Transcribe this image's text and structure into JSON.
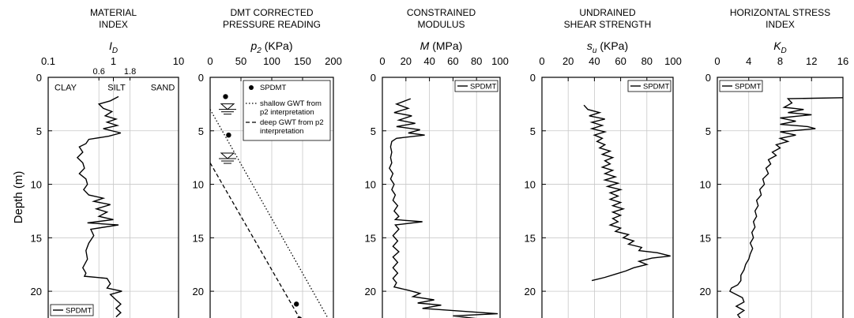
{
  "colors": {
    "line": "#000000",
    "grid": "#c8c8c8",
    "frame": "#000000"
  },
  "ylabel": "Depth (m)",
  "chart_data": [
    {
      "type": "line",
      "title": [
        "MATERIAL",
        "INDEX"
      ],
      "symbol": "I",
      "symbol_sub": "D",
      "unit": "",
      "xscale": "log",
      "xlim": [
        0.1,
        10
      ],
      "ylim": [
        0,
        22.5
      ],
      "xticks": [
        0.1,
        1,
        10
      ],
      "xtick_labels": [
        "0.1",
        "1",
        "10"
      ],
      "xticks_minor": [
        0.6,
        1.8
      ],
      "xticks_minor_labels": [
        "0.6",
        "1.8"
      ],
      "yticks": [
        0,
        5,
        10,
        15,
        20
      ],
      "grid": true,
      "legend": {
        "position": "bottom-left",
        "entries": [
          "SPDMT"
        ]
      },
      "region_labels": [
        "CLAY",
        "SILT",
        "SAND"
      ],
      "series": [
        {
          "name": "SPDMT",
          "style": "solid",
          "points": [
            [
              1.2,
              1.8
            ],
            [
              0.9,
              2.2
            ],
            [
              0.6,
              2.5
            ],
            [
              0.7,
              2.9
            ],
            [
              0.95,
              3.2
            ],
            [
              0.75,
              3.6
            ],
            [
              1.1,
              3.9
            ],
            [
              0.8,
              4.2
            ],
            [
              1.15,
              4.5
            ],
            [
              0.7,
              4.8
            ],
            [
              1.3,
              5.2
            ],
            [
              0.85,
              5.5
            ],
            [
              0.42,
              5.8
            ],
            [
              0.38,
              6.2
            ],
            [
              0.3,
              6.5
            ],
            [
              0.34,
              7.0
            ],
            [
              0.28,
              7.5
            ],
            [
              0.34,
              8.0
            ],
            [
              0.36,
              8.5
            ],
            [
              0.3,
              9.0
            ],
            [
              0.38,
              9.5
            ],
            [
              0.4,
              10.0
            ],
            [
              0.35,
              10.5
            ],
            [
              0.42,
              11.0
            ],
            [
              0.7,
              11.3
            ],
            [
              0.5,
              11.6
            ],
            [
              0.9,
              11.9
            ],
            [
              0.55,
              12.3
            ],
            [
              0.8,
              12.6
            ],
            [
              0.6,
              13.0
            ],
            [
              1.0,
              13.3
            ],
            [
              0.4,
              13.6
            ],
            [
              1.2,
              13.8
            ],
            [
              0.45,
              14.2
            ],
            [
              0.5,
              14.8
            ],
            [
              0.42,
              15.5
            ],
            [
              0.38,
              16.2
            ],
            [
              0.4,
              17.0
            ],
            [
              0.34,
              17.8
            ],
            [
              0.38,
              18.3
            ],
            [
              0.36,
              18.6
            ],
            [
              0.8,
              18.8
            ],
            [
              0.9,
              19.3
            ],
            [
              0.8,
              19.7
            ],
            [
              1.35,
              20.0
            ],
            [
              0.9,
              20.3
            ],
            [
              1.1,
              20.8
            ],
            [
              1.3,
              21.2
            ],
            [
              1.1,
              21.6
            ],
            [
              1.3,
              22.0
            ],
            [
              1.1,
              22.4
            ]
          ]
        }
      ]
    },
    {
      "type": "line",
      "title": [
        "DMT CORRECTED",
        "PRESSURE READING"
      ],
      "symbol": "p",
      "symbol_sub": "2",
      "unit": "(KPa)",
      "xscale": "linear",
      "xlim": [
        0,
        200
      ],
      "ylim": [
        0,
        22.5
      ],
      "xticks": [
        0,
        50,
        100,
        150,
        200
      ],
      "xtick_labels": [
        "0",
        "50",
        "100",
        "150",
        "200"
      ],
      "yticks": [
        0,
        5,
        10,
        15,
        20
      ],
      "grid": true,
      "legend": {
        "position": "top-right",
        "entries": [
          "SPDMT",
          "shallow GWT from p2 interpretation",
          "deep GWT from p2 interpretation"
        ]
      },
      "legend_lines": [
        [
          "SPDMT"
        ],
        [
          "shallow GWT from",
          "p2 interpretation"
        ],
        [
          "deep GWT from p2",
          "interpretation"
        ]
      ],
      "water_table_markers": [
        3.0,
        7.6
      ],
      "series": [
        {
          "name": "SPDMT",
          "style": "points",
          "points": [
            [
              25,
              1.8
            ],
            [
              30,
              5.4
            ],
            [
              140,
              21.2
            ],
            [
              145,
              22.6
            ]
          ]
        },
        {
          "name": "shallow GWT from p2 interpretation",
          "style": "dotted",
          "points": [
            [
              0,
              3.0
            ],
            [
              191,
              22.5
            ]
          ]
        },
        {
          "name": "deep GWT from p2 interpretation",
          "style": "dashed",
          "points": [
            [
              0,
              8.0
            ],
            [
              145,
              22.5
            ]
          ]
        }
      ]
    },
    {
      "type": "line",
      "title": [
        "CONSTRAINED",
        "MODULUS"
      ],
      "symbol": "M",
      "symbol_sub": "",
      "unit": "(MPa)",
      "xscale": "linear",
      "xlim": [
        0,
        100
      ],
      "ylim": [
        0,
        22.5
      ],
      "xticks": [
        0,
        20,
        40,
        60,
        80,
        100
      ],
      "xtick_labels": [
        "0",
        "20",
        "40",
        "60",
        "80",
        "100"
      ],
      "yticks": [
        0,
        5,
        10,
        15,
        20
      ],
      "grid": true,
      "legend": {
        "position": "top-right",
        "entries": [
          "SPDMT"
        ]
      },
      "series": [
        {
          "name": "SPDMT",
          "style": "solid",
          "points": [
            [
              24,
              2.0
            ],
            [
              12,
              2.5
            ],
            [
              22,
              2.9
            ],
            [
              10,
              3.3
            ],
            [
              25,
              3.6
            ],
            [
              14,
              4.0
            ],
            [
              28,
              4.3
            ],
            [
              12,
              4.6
            ],
            [
              32,
              4.9
            ],
            [
              22,
              5.2
            ],
            [
              36,
              5.4
            ],
            [
              12,
              5.7
            ],
            [
              8,
              6.0
            ],
            [
              7,
              6.5
            ],
            [
              8,
              7.0
            ],
            [
              7,
              7.5
            ],
            [
              8,
              8.0
            ],
            [
              6,
              8.5
            ],
            [
              9,
              9.0
            ],
            [
              7,
              9.5
            ],
            [
              10,
              10.0
            ],
            [
              8,
              10.5
            ],
            [
              11,
              11.0
            ],
            [
              9,
              11.5
            ],
            [
              13,
              12.0
            ],
            [
              10,
              12.5
            ],
            [
              14,
              13.0
            ],
            [
              11,
              13.3
            ],
            [
              34,
              13.5
            ],
            [
              11,
              13.8
            ],
            [
              14,
              14.2
            ],
            [
              9,
              14.8
            ],
            [
              13,
              15.3
            ],
            [
              9,
              15.8
            ],
            [
              14,
              16.3
            ],
            [
              9,
              16.8
            ],
            [
              13,
              17.3
            ],
            [
              9,
              17.8
            ],
            [
              13,
              18.3
            ],
            [
              9,
              18.8
            ],
            [
              12,
              19.2
            ],
            [
              10,
              19.6
            ],
            [
              22,
              19.9
            ],
            [
              32,
              20.2
            ],
            [
              26,
              20.5
            ],
            [
              44,
              20.8
            ],
            [
              30,
              21.1
            ],
            [
              50,
              21.3
            ],
            [
              34,
              21.6
            ],
            [
              98,
              22.1
            ],
            [
              60,
              22.3
            ],
            [
              84,
              22.6
            ]
          ]
        }
      ]
    },
    {
      "type": "line",
      "title": [
        "UNDRAINED",
        "SHEAR STRENGTH"
      ],
      "symbol": "s",
      "symbol_sub": "u",
      "unit": "(KPa)",
      "xscale": "linear",
      "xlim": [
        0,
        100
      ],
      "ylim": [
        0,
        22.5
      ],
      "xticks": [
        0,
        20,
        40,
        60,
        80,
        100
      ],
      "xtick_labels": [
        "0",
        "20",
        "40",
        "60",
        "80",
        "100"
      ],
      "yticks": [
        0,
        5,
        10,
        15,
        20
      ],
      "grid": true,
      "legend": {
        "position": "top-right",
        "entries": [
          "SPDMT"
        ]
      },
      "series": [
        {
          "name": "SPDMT",
          "style": "solid",
          "points": [
            [
              32,
              2.6
            ],
            [
              35,
              3.0
            ],
            [
              44,
              3.3
            ],
            [
              36,
              3.6
            ],
            [
              48,
              3.9
            ],
            [
              38,
              4.2
            ],
            [
              46,
              4.5
            ],
            [
              38,
              4.8
            ],
            [
              48,
              5.1
            ],
            [
              40,
              5.4
            ],
            [
              46,
              5.7
            ],
            [
              42,
              6.0
            ],
            [
              48,
              6.3
            ],
            [
              44,
              6.6
            ],
            [
              52,
              6.9
            ],
            [
              46,
              7.2
            ],
            [
              54,
              7.5
            ],
            [
              48,
              7.8
            ],
            [
              52,
              8.1
            ],
            [
              46,
              8.4
            ],
            [
              54,
              8.7
            ],
            [
              48,
              9.0
            ],
            [
              56,
              9.3
            ],
            [
              48,
              9.6
            ],
            [
              58,
              9.9
            ],
            [
              50,
              10.2
            ],
            [
              60,
              10.5
            ],
            [
              52,
              10.8
            ],
            [
              58,
              11.1
            ],
            [
              52,
              11.4
            ],
            [
              60,
              11.7
            ],
            [
              54,
              12.0
            ],
            [
              62,
              12.3
            ],
            [
              54,
              12.6
            ],
            [
              60,
              12.9
            ],
            [
              54,
              13.2
            ],
            [
              58,
              13.5
            ],
            [
              52,
              13.8
            ],
            [
              60,
              14.1
            ],
            [
              56,
              14.4
            ],
            [
              66,
              14.7
            ],
            [
              62,
              15.0
            ],
            [
              70,
              15.3
            ],
            [
              66,
              15.6
            ],
            [
              76,
              15.9
            ],
            [
              74,
              16.2
            ],
            [
              88,
              16.4
            ],
            [
              98,
              16.7
            ],
            [
              84,
              16.9
            ],
            [
              74,
              17.2
            ],
            [
              80,
              17.5
            ],
            [
              70,
              17.8
            ],
            [
              64,
              18.1
            ],
            [
              56,
              18.4
            ],
            [
              48,
              18.7
            ],
            [
              38,
              19.0
            ]
          ]
        }
      ]
    },
    {
      "type": "line",
      "title": [
        "HORIZONTAL STRESS",
        "INDEX"
      ],
      "symbol": "K",
      "symbol_sub": "D",
      "unit": "",
      "xscale": "linear",
      "xlim": [
        0,
        16
      ],
      "ylim": [
        0,
        22.5
      ],
      "xticks": [
        0,
        4,
        8,
        12,
        16
      ],
      "xtick_labels": [
        "0",
        "4",
        "8",
        "12",
        "16"
      ],
      "yticks": [
        0,
        5,
        10,
        15,
        20
      ],
      "grid": true,
      "legend": {
        "position": "top-left",
        "entries": [
          "SPDMT"
        ]
      },
      "series": [
        {
          "name": "SPDMT",
          "style": "solid",
          "points": [
            [
              16,
              1.9
            ],
            [
              9,
              2.0
            ],
            [
              9.5,
              2.4
            ],
            [
              8.5,
              2.8
            ],
            [
              11,
              3.0
            ],
            [
              9,
              3.3
            ],
            [
              12,
              3.5
            ],
            [
              8,
              3.8
            ],
            [
              10,
              4.1
            ],
            [
              8,
              4.4
            ],
            [
              11.5,
              4.6
            ],
            [
              12.5,
              4.8
            ],
            [
              8,
              5.1
            ],
            [
              10,
              5.4
            ],
            [
              8,
              5.7
            ],
            [
              9,
              6.0
            ],
            [
              7.5,
              6.3
            ],
            [
              8,
              6.6
            ],
            [
              7,
              7.0
            ],
            [
              7.5,
              7.3
            ],
            [
              6.5,
              7.7
            ],
            [
              6.8,
              8.1
            ],
            [
              6.2,
              8.5
            ],
            [
              6.5,
              9.0
            ],
            [
              5.8,
              9.5
            ],
            [
              6,
              10.0
            ],
            [
              5.4,
              10.5
            ],
            [
              5.6,
              11.0
            ],
            [
              5,
              11.5
            ],
            [
              5.2,
              12.0
            ],
            [
              4.8,
              12.5
            ],
            [
              5,
              13.0
            ],
            [
              4.6,
              13.5
            ],
            [
              4.8,
              14.0
            ],
            [
              4.4,
              14.5
            ],
            [
              4.6,
              15.0
            ],
            [
              4.2,
              15.5
            ],
            [
              4.5,
              16.0
            ],
            [
              4.2,
              16.5
            ],
            [
              4,
              17.0
            ],
            [
              3.6,
              17.5
            ],
            [
              3.4,
              18.0
            ],
            [
              3,
              18.5
            ],
            [
              3,
              19.0
            ],
            [
              2.6,
              19.4
            ],
            [
              1.8,
              19.7
            ],
            [
              1.6,
              20.0
            ],
            [
              2.4,
              20.3
            ],
            [
              3.2,
              20.6
            ],
            [
              3.4,
              21.0
            ],
            [
              2.4,
              21.4
            ],
            [
              3.4,
              21.8
            ],
            [
              2.6,
              22.2
            ],
            [
              3.0,
              22.6
            ]
          ]
        }
      ]
    }
  ]
}
